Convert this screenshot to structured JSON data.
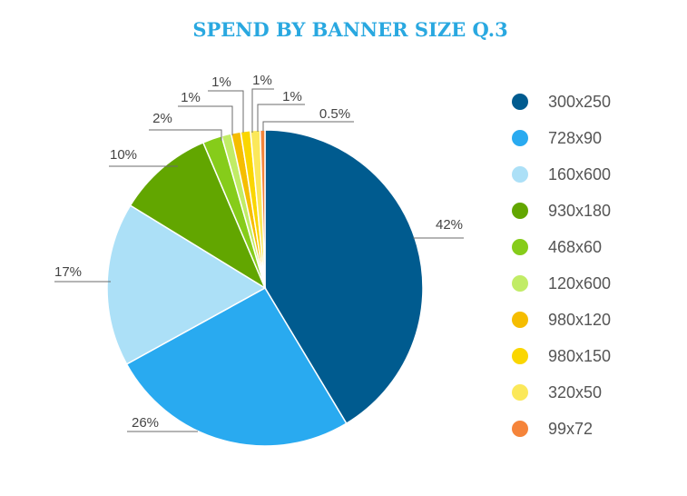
{
  "chart_data": {
    "type": "pie",
    "title": "SPEND BY BANNER SIZE Q.3",
    "title_color": "#29a8e0",
    "legend_position": "right",
    "slices": [
      {
        "label": "300x250",
        "value": 42,
        "value_label": "42%",
        "color": "#005b8f"
      },
      {
        "label": "728x90",
        "value": 26,
        "value_label": "26%",
        "color": "#29aaf0"
      },
      {
        "label": "160x600",
        "value": 17,
        "value_label": "17%",
        "color": "#ace0f7"
      },
      {
        "label": "930x180",
        "value": 10,
        "value_label": "10%",
        "color": "#62a600"
      },
      {
        "label": "468x60",
        "value": 2,
        "value_label": "2%",
        "color": "#86cc1a"
      },
      {
        "label": "120x600",
        "value": 1,
        "value_label": "1%",
        "color": "#c1ec66"
      },
      {
        "label": "980x120",
        "value": 1,
        "value_label": "1%",
        "color": "#f5bd00"
      },
      {
        "label": "980x150",
        "value": 1,
        "value_label": "1%",
        "color": "#fad600"
      },
      {
        "label": "320x50",
        "value": 1,
        "value_label": "1%",
        "color": "#fbe85a"
      },
      {
        "label": "99x72",
        "value": 0.5,
        "value_label": "0.5%",
        "color": "#f5843a"
      }
    ]
  }
}
